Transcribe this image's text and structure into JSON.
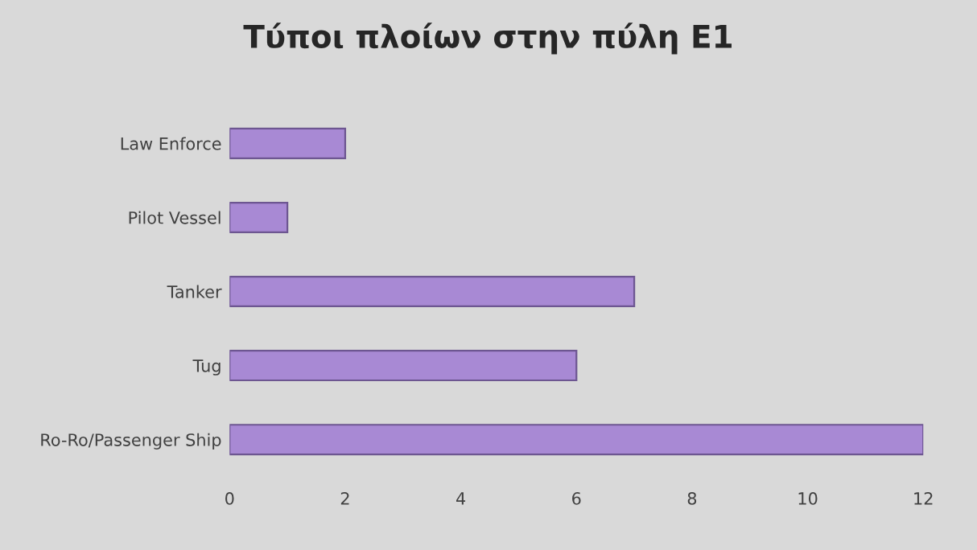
{
  "chart_data": {
    "type": "bar",
    "orientation": "horizontal",
    "title": "Τύποι πλοίων στην πύλη Ε1",
    "categories": [
      "Law Enforce",
      "Pilot Vessel",
      "Tanker",
      "Tug",
      "Ro-Ro/Passenger Ship"
    ],
    "values": [
      2,
      1,
      7,
      6,
      12
    ],
    "color": "#a889d4",
    "xlim": [
      0,
      12
    ],
    "xticks": [
      0,
      2,
      4,
      6,
      8,
      10,
      12
    ],
    "grid": false,
    "legend": false
  }
}
